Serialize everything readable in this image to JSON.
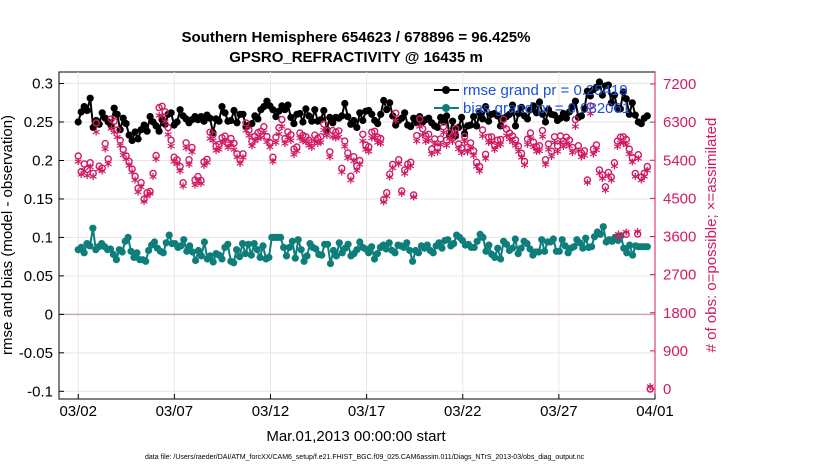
{
  "chart_data": {
    "type": "line",
    "title": "Southern Hemisphere 654623 / 678896 = 96.425%",
    "subtitle": "GPSRO_REFRACTIVITY @ 16435 m",
    "xlabel": "Mar.01,2013 00:00:00 start",
    "ylabel": "rmse and bias (model - observation)",
    "y2label": "# of obs: o=possible; ×=assimilated",
    "x_ticks": [
      "03/02",
      "03/07",
      "03/12",
      "03/17",
      "03/22",
      "03/27",
      "04/01"
    ],
    "y_ticks": [
      "0.3",
      "0.25",
      "0.2",
      "0.15",
      "0.1",
      "0.05",
      "0",
      "-0.05",
      "-0.1"
    ],
    "y2_ticks": [
      "7200",
      "6300",
      "5400",
      "4500",
      "3600",
      "2700",
      "1800",
      "900",
      "0"
    ],
    "ylim": [
      -0.11,
      0.315
    ],
    "y2lim": [
      0,
      7200
    ],
    "xlim": [
      0,
      31
    ],
    "footer": "data file: /Users/raeder/DAI/ATM_forcXX/CAM6_setup/f.e21.FHIST_BGC.f09_025.CAM6assim.011/Diags_NTrS_2013-03/obs_diag_output.nc",
    "legend": {
      "placement": "top-right",
      "entries": [
        "rmse grand pr = 0.25419",
        "bias grand pr = 0.082061"
      ]
    },
    "colors": {
      "rmse": "#000000",
      "bias": "#0e7e7a",
      "obs": "#d11a63",
      "legend_text": "#1a4fd6",
      "zero_line": "#c9a6b0"
    },
    "series": [
      {
        "name": "rmse grand pr = 0.25419",
        "axis": "left",
        "color": "#000000",
        "values": [
          0.25,
          0.263,
          0.27,
          0.265,
          0.281,
          0.243,
          0.252,
          0.247,
          0.262,
          0.255,
          0.25,
          0.245,
          0.268,
          0.26,
          0.24,
          0.255,
          0.248,
          0.233,
          0.226,
          0.237,
          0.228,
          0.24,
          0.246,
          0.238,
          0.257,
          0.25,
          0.245,
          0.238,
          0.253,
          0.247,
          0.26,
          0.262,
          0.246,
          0.25,
          0.266,
          0.258,
          0.254,
          0.249,
          0.253,
          0.257,
          0.253,
          0.257,
          0.251,
          0.259,
          0.255,
          0.236,
          0.254,
          0.251,
          0.27,
          0.262,
          0.251,
          0.252,
          0.265,
          0.249,
          0.26,
          0.26,
          0.244,
          0.246,
          0.248,
          0.258,
          0.254,
          0.266,
          0.27,
          0.277,
          0.271,
          0.266,
          0.257,
          0.264,
          0.271,
          0.266,
          0.272,
          0.256,
          0.248,
          0.26,
          0.261,
          0.25,
          0.267,
          0.258,
          0.251,
          0.266,
          0.251,
          0.253,
          0.265,
          0.24,
          0.256,
          0.249,
          0.256,
          0.255,
          0.258,
          0.274,
          0.257,
          0.247,
          0.252,
          0.243,
          0.262,
          0.252,
          0.264,
          0.265,
          0.26,
          0.252,
          0.248,
          0.26,
          0.278,
          0.266,
          0.275,
          0.258,
          0.246,
          0.252,
          0.255,
          0.262,
          0.246,
          0.244,
          0.255,
          0.249,
          0.257,
          0.25,
          0.253,
          0.255,
          0.249,
          0.245,
          0.243,
          0.256,
          0.25,
          0.258,
          0.232,
          0.251,
          0.232,
          0.243,
          0.256,
          0.235,
          0.245,
          0.246,
          0.257,
          0.245,
          0.262,
          0.254,
          0.27,
          0.251,
          0.26,
          0.261,
          0.258,
          0.245,
          0.255,
          0.257,
          0.26,
          0.272,
          0.245,
          0.261,
          0.269,
          0.258,
          0.254,
          0.266,
          0.271,
          0.262,
          0.276,
          0.26,
          0.25,
          0.266,
          0.26,
          0.259,
          0.252,
          0.255,
          0.261,
          0.255,
          0.263,
          0.27,
          0.277,
          0.256,
          0.258,
          0.267,
          0.29,
          0.284,
          0.292,
          0.295,
          0.302,
          0.285,
          0.297,
          0.298,
          0.275,
          0.285,
          0.268,
          0.267,
          0.289,
          0.28,
          0.26,
          0.275,
          0.259,
          0.25,
          0.248,
          0.255,
          0.258
        ]
      },
      {
        "name": "bias grand pr = 0.082061",
        "axis": "left",
        "color": "#0e7e7a",
        "values": [
          0.084,
          0.087,
          0.08,
          0.092,
          0.089,
          0.112,
          0.084,
          0.088,
          0.092,
          0.088,
          0.084,
          0.085,
          0.078,
          0.071,
          0.084,
          0.081,
          0.095,
          0.1,
          0.082,
          0.074,
          0.08,
          0.071,
          0.071,
          0.069,
          0.083,
          0.09,
          0.094,
          0.086,
          0.082,
          0.08,
          0.093,
          0.103,
          0.092,
          0.092,
          0.087,
          0.089,
          0.097,
          0.082,
          0.089,
          0.081,
          0.07,
          0.083,
          0.076,
          0.094,
          0.072,
          0.076,
          0.068,
          0.079,
          0.077,
          0.072,
          0.087,
          0.091,
          0.069,
          0.067,
          0.084,
          0.075,
          0.092,
          0.079,
          0.091,
          0.077,
          0.092,
          0.084,
          0.074,
          0.089,
          0.072,
          0.074,
          0.1,
          0.1,
          0.1,
          0.1,
          0.087,
          0.076,
          0.087,
          0.095,
          0.073,
          0.097,
          0.084,
          0.069,
          0.076,
          0.092,
          0.087,
          0.085,
          0.078,
          0.077,
          0.091,
          0.091,
          0.066,
          0.083,
          0.076,
          0.093,
          0.08,
          0.086,
          0.091,
          0.076,
          0.079,
          0.084,
          0.094,
          0.087,
          0.085,
          0.08,
          0.088,
          0.072,
          0.079,
          0.087,
          0.09,
          0.085,
          0.093,
          0.083,
          0.08,
          0.09,
          0.089,
          0.087,
          0.093,
          0.083,
          0.069,
          0.083,
          0.08,
          0.089,
          0.086,
          0.09,
          0.083,
          0.08,
          0.089,
          0.093,
          0.086,
          0.096,
          0.097,
          0.089,
          0.092,
          0.103,
          0.1,
          0.096,
          0.09,
          0.091,
          0.087,
          0.087,
          0.095,
          0.104,
          0.1,
          0.082,
          0.09,
          0.078,
          0.074,
          0.086,
          0.072,
          0.095,
          0.091,
          0.083,
          0.086,
          0.098,
          0.079,
          0.086,
          0.095,
          0.092,
          0.085,
          0.077,
          0.081,
          0.081,
          0.097,
          0.082,
          0.094,
          0.094,
          0.098,
          0.082,
          0.082,
          0.097,
          0.089,
          0.08,
          0.086,
          0.088,
          0.097,
          0.093,
          0.086,
          0.099,
          0.087,
          0.088,
          0.101,
          0.107,
          0.104,
          0.114,
          0.094,
          0.097,
          0.095,
          0.1,
          0.096,
          0.102,
          0.086,
          0.08,
          0.09,
          0.077,
          0.089,
          0.088,
          0.088,
          0.088,
          0.088
        ]
      },
      {
        "name": "",
        "axis": "right",
        "marker": "o",
        "color": "#d11a63",
        "values": [
          5500,
          5133,
          5313,
          5183,
          5343,
          5093,
          6280,
          5263,
          5213,
          5793,
          5433,
          6373,
          6320,
          6113,
          5870,
          5653,
          5503,
          5373,
          5193,
          5023,
          4740,
          4873,
          4483,
          4633,
          4663,
          5090,
          5513,
          6643,
          6673,
          6543,
          6170,
          5873,
          5473,
          5410,
          5253,
          4870,
          5813,
          5413,
          5703,
          4933,
          5013,
          4923,
          5363,
          5423,
          6060,
          6003,
          5733,
          5773,
          5930,
          5970,
          5813,
          5913,
          5800,
          5550,
          5423,
          5553,
          6280,
          6113,
          5850,
          5963,
          6050,
          6083,
          6193,
          5960,
          5820,
          5473,
          5943,
          6170,
          6363,
          5910,
          6070,
          6000,
          5663,
          5713,
          6043,
          5990,
          5953,
          5873,
          5823,
          5993,
          5920,
          5953,
          6253,
          6100,
          5600,
          6100,
          6060,
          6093,
          5210,
          5853,
          5570,
          5023,
          5483,
          5263,
          5393,
          6013,
          5760,
          5720,
          6063,
          6083,
          5943,
          5913,
          4470,
          4633,
          5073,
          5303,
          6510,
          5413,
          4673,
          5173,
          5310,
          5353,
          4583,
          5983,
          6373,
          6143,
          5983,
          6013,
          5663,
          5903,
          5703,
          5903,
          6193,
          5873,
          6053,
          5973,
          6153,
          5783,
          5690,
          5960,
          5703,
          5810,
          5623,
          5353,
          5253,
          6113,
          5540,
          5943,
          5953,
          5760,
          5873,
          5890,
          6370,
          6133,
          6043,
          5973,
          5880,
          5733,
          5563,
          5373,
          5900,
          6043,
          5830,
          5723,
          5743,
          6100,
          5413,
          5783,
          5613,
          5953,
          5733,
          5973,
          5853,
          5943,
          5873,
          5703,
          6363,
          5743,
          5573,
          5623,
          4933,
          6683,
          5663,
          5763,
          5173,
          5053,
          4773,
          5113,
          5003,
          5343,
          5853,
          5943,
          5953,
          5890,
          5663,
          5463,
          5090,
          5530,
          5003,
          5093,
          5253
        ]
      },
      {
        "name": "",
        "axis": "right",
        "marker": "*",
        "color": "#d11a63",
        "values": [
          5313,
          5003,
          5090,
          4980,
          5183,
          4963,
          6003,
          5133,
          5093,
          5603,
          5253,
          6093,
          6010,
          5890,
          5693,
          5460,
          5373,
          5220,
          5060,
          4880,
          4593,
          4713,
          4373,
          4493,
          4553,
          4960,
          5373,
          6393,
          6403,
          6253,
          5953,
          5683,
          5313,
          5253,
          5093,
          4733,
          5633,
          5243,
          5530,
          4753,
          4853,
          4793,
          5213,
          5283,
          5853,
          5813,
          5573,
          5593,
          5753,
          5790,
          5643,
          5733,
          5600,
          5413,
          5263,
          5410,
          6043,
          5923,
          5673,
          5790,
          5853,
          5883,
          5993,
          5773,
          5653,
          5313,
          5763,
          5960,
          6143,
          5733,
          5880,
          5803,
          5473,
          5563,
          5863,
          5793,
          5773,
          5693,
          5643,
          5793,
          5733,
          5763,
          6053,
          5920,
          5413,
          5893,
          5863,
          5893,
          5060,
          5663,
          5393,
          4873,
          5323,
          5103,
          5243,
          5800,
          5593,
          5543,
          5870,
          5883,
          5763,
          5733,
          4353,
          4493,
          4943,
          5163,
          6283,
          5253,
          4553,
          5033,
          5163,
          5203,
          4473,
          5790,
          6143,
          5933,
          5783,
          5813,
          5493,
          5723,
          5533,
          5713,
          5993,
          5693,
          5853,
          5783,
          5953,
          5603,
          5513,
          5783,
          5533,
          5633,
          5453,
          5193,
          5093,
          5913,
          5383,
          5763,
          5763,
          5593,
          5693,
          5710,
          6133,
          5930,
          5843,
          5773,
          5693,
          5553,
          5403,
          5223,
          5713,
          5853,
          5653,
          5553,
          5563,
          5903,
          5243,
          5593,
          5433,
          5763,
          5543,
          5773,
          5663,
          5753,
          5683,
          5523,
          6133,
          5563,
          5413,
          5453,
          4813,
          6443,
          5493,
          5583,
          5043,
          4913,
          4643,
          4973,
          4873,
          5203,
          5663,
          5753,
          5763,
          5703,
          5493,
          5303,
          4953,
          5383,
          4873,
          4953,
          5103
        ]
      }
    ],
    "obs_extra_points": [
      {
        "x": 30.75,
        "y2": 0,
        "note": "o and * at zero"
      },
      {
        "x": 29.1,
        "y2": 3600
      },
      {
        "x": 29.5,
        "y2": 3650
      },
      {
        "x": 30.1,
        "y2": 3660
      }
    ]
  }
}
